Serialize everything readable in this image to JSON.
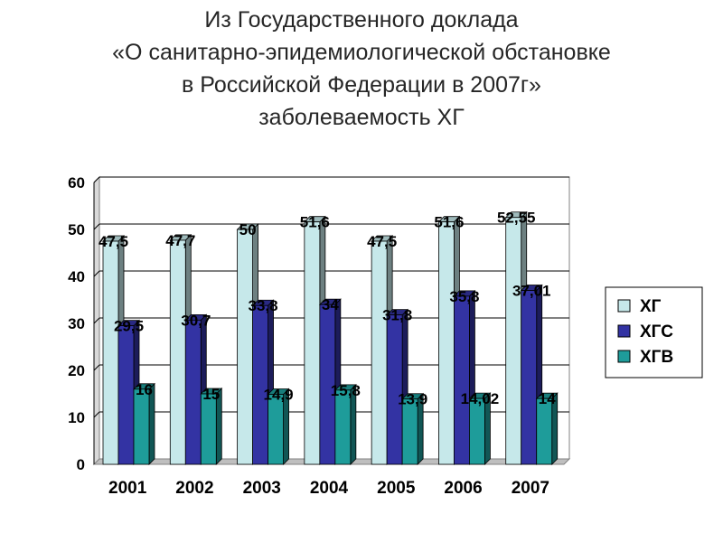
{
  "title_lines": [
    "Из Государственного доклада",
    "«О санитарно-эпидемиологической обстановке",
    "в Российской Федерации в 2007г»",
    "заболеваемость ХГ"
  ],
  "chart_data": {
    "type": "bar",
    "title": "Из Государственного доклада «О санитарно-эпидемиологической обстановке в Российской Федерации в 2007г» заболеваемость ХГ",
    "xlabel": "",
    "ylabel": "",
    "ylim": [
      0,
      60
    ],
    "yticks": [
      0,
      10,
      20,
      30,
      40,
      50,
      60
    ],
    "categories": [
      "2001",
      "2002",
      "2003",
      "2004",
      "2005",
      "2006",
      "2007"
    ],
    "series": [
      {
        "name": "ХГ",
        "color": "#C6E8EA",
        "values": [
          47.5,
          47.7,
          50,
          51.6,
          47.5,
          51.6,
          52.55
        ],
        "labels": [
          "47,5",
          "47,7",
          "50",
          "51,6",
          "47,5",
          "51,6",
          "52,55"
        ]
      },
      {
        "name": "ХГС",
        "color": "#3333A3",
        "values": [
          29.5,
          30.7,
          33.8,
          34,
          31.8,
          35.8,
          37.01
        ],
        "labels": [
          "29,5",
          "30,7",
          "33,8",
          "34",
          "31,8",
          "35,8",
          "37,01"
        ]
      },
      {
        "name": "ХГВ",
        "color": "#1E9C9A",
        "values": [
          16,
          15,
          14.9,
          15.8,
          13.9,
          14.02,
          14
        ],
        "labels": [
          "16",
          "15",
          "14,9",
          "15,8",
          "13,9",
          "14,02",
          "14"
        ]
      }
    ],
    "grid": true,
    "legend_position": "right"
  }
}
